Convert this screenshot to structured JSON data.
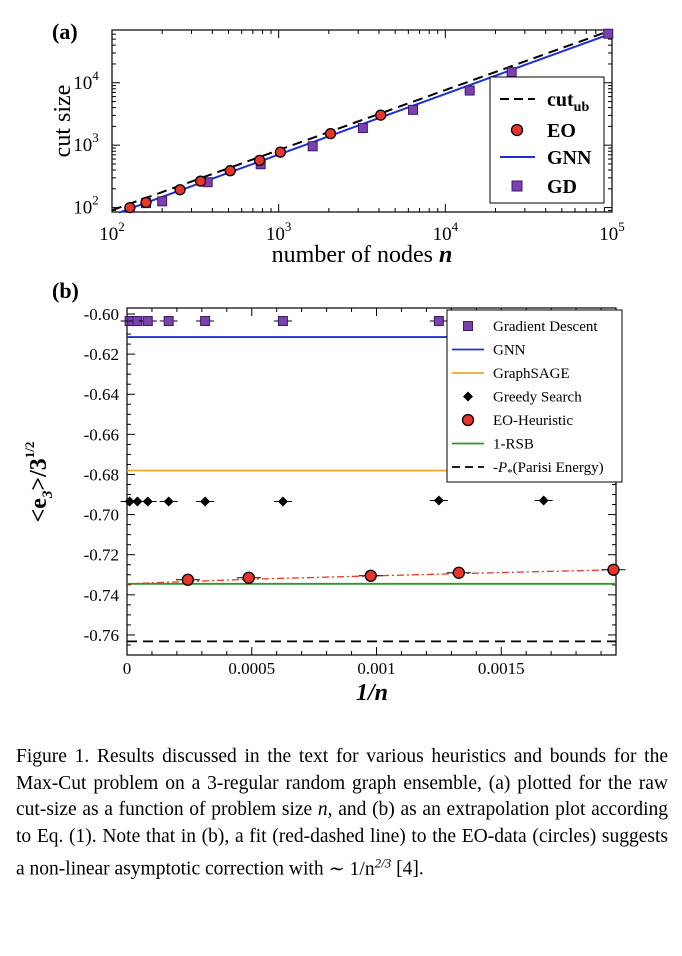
{
  "figure": {
    "panel_a": {
      "tag": "(a)",
      "ylabel": "cut size",
      "xlabel_text": "number of nodes ",
      "xlabel_var": "n",
      "x_ticks": [
        {
          "base": "10",
          "exp": "2"
        },
        {
          "base": "10",
          "exp": "3"
        },
        {
          "base": "10",
          "exp": "4"
        },
        {
          "base": "10",
          "exp": "5"
        }
      ],
      "y_ticks": [
        {
          "base": "10",
          "exp": "2"
        },
        {
          "base": "10",
          "exp": "3"
        },
        {
          "base": "10",
          "exp": "4"
        }
      ],
      "legend": [
        {
          "key": "cut_ub",
          "label": "cut",
          "sub": "ub"
        },
        {
          "key": "eo",
          "label": "EO"
        },
        {
          "key": "gnn",
          "label": "GNN"
        },
        {
          "key": "gd",
          "label": "GD"
        }
      ]
    },
    "panel_b": {
      "tag": "(b)",
      "ylabel_base": "<e",
      "ylabel_sub": "3",
      "ylabel_rest": ">/3",
      "ylabel_sup": "1/2",
      "xlabel": "1/n",
      "x_tick_labels": [
        "0",
        "0.0005",
        "0.001",
        "0.0015"
      ],
      "y_tick_labels": [
        "-0.60",
        "-0.62",
        "-0.64",
        "-0.66",
        "-0.68",
        "-0.70",
        "-0.72",
        "-0.74",
        "-0.76"
      ],
      "legend": [
        {
          "key": "gd",
          "label": "Gradient Descent"
        },
        {
          "key": "gnn",
          "label": "GNN"
        },
        {
          "key": "sage",
          "label": "GraphSAGE"
        },
        {
          "key": "greedy",
          "label": "Greedy Search"
        },
        {
          "key": "eoh",
          "label": "EO-Heuristic"
        },
        {
          "key": "rsb",
          "label": "1-RSB"
        },
        {
          "key": "parisi",
          "label": "-P",
          "sub": "*",
          "rest": "(Parisi Energy)"
        }
      ]
    }
  },
  "colors": {
    "gd": "#7b3fb0",
    "gd_edge": "#3d1a66",
    "eo": "#e8342a",
    "gnn": "#1f2fd6",
    "sage": "#f5a623",
    "rsb": "#2a9a2a",
    "fit": "#e8342a",
    "black": "#000000"
  },
  "chart_data": [
    {
      "type": "scatter",
      "xscale": "log",
      "yscale": "log",
      "xlim": [
        100,
        100000
      ],
      "ylim": [
        85,
        70000
      ],
      "xlabel": "number of nodes n",
      "ylabel": "cut size",
      "legend_position": "right",
      "series": [
        {
          "name": "cut_ub",
          "kind": "line",
          "x": [
            100,
            100000
          ],
          "y": [
            91,
            70000
          ]
        },
        {
          "name": "EO",
          "kind": "circle",
          "x": [
            128,
            160,
            256,
            340,
            512,
            768,
            1024,
            2048,
            4096
          ],
          "y": [
            100,
            121,
            193,
            265,
            390,
            571,
            772,
            1530,
            3030
          ]
        },
        {
          "name": "GNN",
          "kind": "line",
          "x": [
            110,
            100000
          ],
          "y": [
            83,
            62000
          ]
        },
        {
          "name": "GD",
          "kind": "square",
          "x": [
            160,
            200,
            375,
            780,
            1600,
            3200,
            6400,
            14000,
            25000,
            95000
          ],
          "y": [
            118,
            126,
            255,
            495,
            960,
            1880,
            3680,
            7500,
            14800,
            61000
          ]
        }
      ]
    },
    {
      "type": "scatter",
      "xlim": [
        0,
        0.00196
      ],
      "ylim": [
        -0.77,
        -0.597
      ],
      "xlabel": "1/n",
      "ylabel": "<e3>/3^(1/2)",
      "legend_position": "top-right",
      "series": [
        {
          "name": "Gradient Descent",
          "kind": "square",
          "x": [
            1.05e-05,
            2.1e-05,
            4.17e-05,
            8.33e-05,
            0.000167,
            0.000313,
            0.000625,
            0.00125
          ],
          "y": [
            -0.6035,
            -0.6035,
            -0.6035,
            -0.6035,
            -0.6035,
            -0.6035,
            -0.6035,
            -0.6035
          ]
        },
        {
          "name": "GNN",
          "kind": "hline",
          "y": -0.6115
        },
        {
          "name": "GraphSAGE",
          "kind": "hline",
          "y": -0.678
        },
        {
          "name": "Greedy Search",
          "kind": "diamond",
          "x": [
            1.05e-05,
            4.17e-05,
            8.33e-05,
            0.000167,
            0.000313,
            0.000625,
            0.00125,
            0.00167
          ],
          "y": [
            -0.6935,
            -0.6935,
            -0.6935,
            -0.6935,
            -0.6935,
            -0.6935,
            -0.693,
            -0.693
          ]
        },
        {
          "name": "EO-Heuristic",
          "kind": "circle",
          "x": [
            0.000244,
            0.000488,
            0.000977,
            0.00133,
            0.00195
          ],
          "y": [
            -0.7325,
            -0.7315,
            -0.7305,
            -0.729,
            -0.7275
          ]
        },
        {
          "name": "1-RSB",
          "kind": "hline",
          "y": -0.7345
        },
        {
          "name": "-P*(Parisi Energy)",
          "kind": "hline",
          "y": -0.7632
        },
        {
          "name": "fit",
          "kind": "dashdot",
          "x": [
            0,
            0.0005,
            0.001,
            0.0015,
            0.00196
          ],
          "y": [
            -0.7345,
            -0.7322,
            -0.7305,
            -0.7289,
            -0.7275
          ]
        }
      ]
    }
  ],
  "caption": {
    "lead": "Figure 1. Results discussed in the text for various heuristics and bounds for the Max-Cut problem on a 3-regular random graph ensemble, (a) plotted for the raw cut-size as a function of problem size ",
    "var_n": "n",
    "mid": ", and (b) as an extrapolation plot according to Eq. (1). Note that in (b), a fit (red-dashed line) to the EO-data (circles) suggests a non-linear asymptotic correction with ",
    "math": "∼ 1/n",
    "math_exp": "2/3",
    "tail": " [4]."
  }
}
